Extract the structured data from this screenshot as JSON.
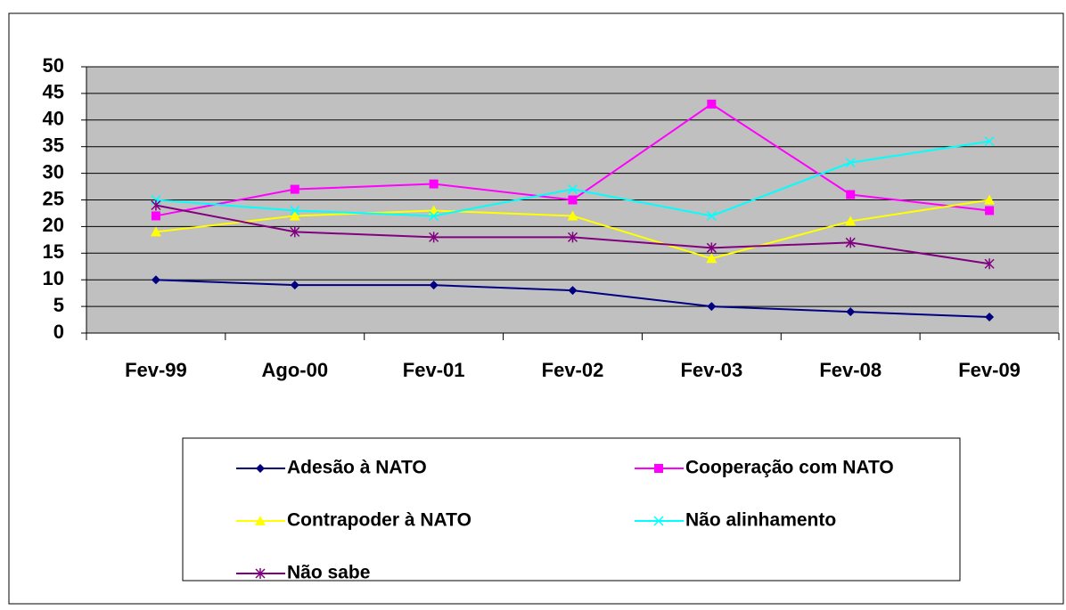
{
  "chart_data": {
    "type": "line",
    "categories": [
      "Fev-99",
      "Ago-00",
      "Fev-01",
      "Fev-02",
      "Fev-03",
      "Fev-08",
      "Fev-09"
    ],
    "series": [
      {
        "name": "Adesão à NATO",
        "color": "#000080",
        "marker": "diamond",
        "values": [
          10,
          9,
          9,
          8,
          5,
          4,
          3
        ]
      },
      {
        "name": "Cooperação com NATO",
        "color": "#ff00ff",
        "marker": "square",
        "values": [
          22,
          27,
          28,
          25,
          43,
          26,
          23
        ]
      },
      {
        "name": "Contrapoder à NATO",
        "color": "#ffff00",
        "marker": "triangle",
        "values": [
          19,
          22,
          23,
          22,
          14,
          21,
          25
        ]
      },
      {
        "name": "Não alinhamento",
        "color": "#00ffff",
        "marker": "x",
        "values": [
          25,
          23,
          22,
          27,
          22,
          32,
          36
        ]
      },
      {
        "name": "Não sabe",
        "color": "#800080",
        "marker": "asterisk",
        "values": [
          24,
          19,
          18,
          18,
          16,
          17,
          13
        ]
      }
    ],
    "ylim": [
      0,
      50
    ],
    "yticks": [
      0,
      5,
      10,
      15,
      20,
      25,
      30,
      35,
      40,
      45,
      50
    ],
    "grid": true,
    "legend": "bottom",
    "plot_background": "#c0c0c0"
  }
}
